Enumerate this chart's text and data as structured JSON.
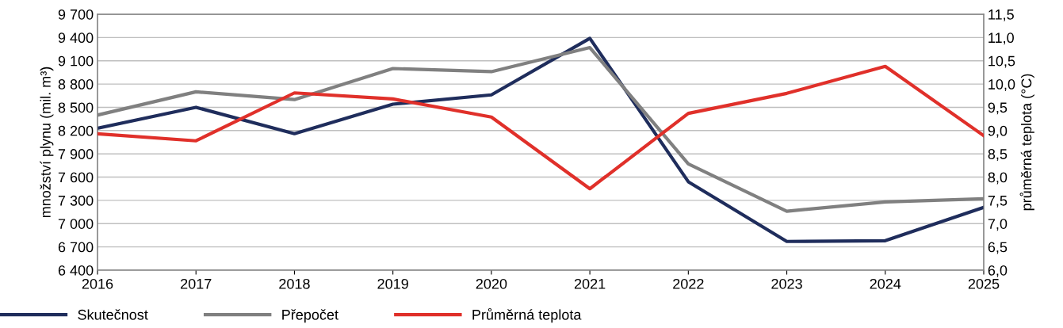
{
  "chart_data": {
    "type": "line",
    "ylabel": "množství plynu (mil. m³)",
    "y2label": "průměrná teplota (°C)",
    "categories": [
      "2016",
      "2017",
      "2018",
      "2019",
      "2020",
      "2021",
      "2022",
      "2023",
      "2024",
      "2025"
    ],
    "series": [
      {
        "name": "Skutečnost",
        "color": "#1f2d5c",
        "values": [
          8230,
          8500,
          8160,
          8540,
          8660,
          9390,
          7540,
          6770,
          6780,
          7210
        ]
      },
      {
        "name": "Přepočet",
        "color": "#808080",
        "values": [
          8400,
          8700,
          8600,
          9000,
          8960,
          9270,
          7770,
          7160,
          7280,
          7320
        ]
      },
      {
        "name": "Průměrná teplota",
        "color": "#e0302a",
        "axis": "y2",
        "values": [
          8.93,
          8.78,
          9.81,
          9.68,
          9.29,
          7.75,
          9.37,
          9.8,
          10.38,
          8.89
        ]
      }
    ],
    "ylim": [
      6400,
      9700
    ],
    "yticks": [
      {
        "value": 6400,
        "label": "6 400"
      },
      {
        "value": 6700,
        "label": "6 700"
      },
      {
        "value": 7000,
        "label": "7 000"
      },
      {
        "value": 7300,
        "label": "7 300"
      },
      {
        "value": 7600,
        "label": "7 600"
      },
      {
        "value": 7900,
        "label": "7 900"
      },
      {
        "value": 8200,
        "label": "8 200"
      },
      {
        "value": 8500,
        "label": "8 500"
      },
      {
        "value": 8800,
        "label": "8 800"
      },
      {
        "value": 9100,
        "label": "9 100"
      },
      {
        "value": 9400,
        "label": "9 400"
      },
      {
        "value": 9700,
        "label": "9 700"
      }
    ],
    "y2lim": [
      6,
      11.5
    ],
    "y2ticks": [
      {
        "value": 6,
        "label": "6,0"
      },
      {
        "value": 6.5,
        "label": "6,5"
      },
      {
        "value": 7,
        "label": "7,0"
      },
      {
        "value": 7.5,
        "label": "7,5"
      },
      {
        "value": 8,
        "label": "8,0"
      },
      {
        "value": 8.5,
        "label": "8,5"
      },
      {
        "value": 9,
        "label": "9,0"
      },
      {
        "value": 9.5,
        "label": "9,5"
      },
      {
        "value": 10,
        "label": "10,0"
      },
      {
        "value": 10.5,
        "label": "10,5"
      },
      {
        "value": 11,
        "label": "11,0"
      },
      {
        "value": 11.5,
        "label": "11,5"
      }
    ],
    "grid": "y",
    "legend": "bottom",
    "marker": "none",
    "line_style": "solid"
  }
}
